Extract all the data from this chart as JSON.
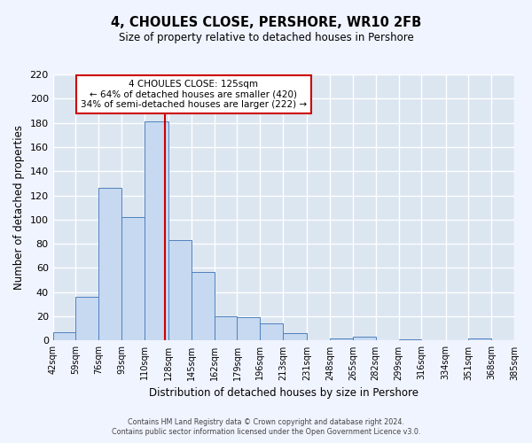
{
  "title": "4, CHOULES CLOSE, PERSHORE, WR10 2FB",
  "subtitle": "Size of property relative to detached houses in Pershore",
  "xlabel": "Distribution of detached houses by size in Pershore",
  "ylabel": "Number of detached properties",
  "bar_color": "#c6d9f1",
  "bar_edge_color": "#4f81bd",
  "bg_color": "#dce6f1",
  "grid_color": "#ffffff",
  "annotation_box_color": "#ffffff",
  "annotation_box_edge": "#cc0000",
  "fig_bg_color": "#f0f4ff",
  "redline_x": 125,
  "bin_edges": [
    42,
    59,
    76,
    93,
    110,
    128,
    145,
    162,
    179,
    196,
    213,
    231,
    248,
    265,
    282,
    299,
    316,
    334,
    351,
    368,
    385
  ],
  "bar_heights": [
    7,
    36,
    126,
    102,
    181,
    83,
    57,
    20,
    19,
    14,
    6,
    0,
    2,
    3,
    0,
    1,
    0,
    0,
    2,
    0
  ],
  "annotation_line1": "4 CHOULES CLOSE: 125sqm",
  "annotation_line2": "← 64% of detached houses are smaller (420)",
  "annotation_line3": "34% of semi-detached houses are larger (222) →",
  "ylim": [
    0,
    220
  ],
  "yticks": [
    0,
    20,
    40,
    60,
    80,
    100,
    120,
    140,
    160,
    180,
    200,
    220
  ],
  "xtick_labels": [
    "42sqm",
    "59sqm",
    "76sqm",
    "93sqm",
    "110sqm",
    "128sqm",
    "145sqm",
    "162sqm",
    "179sqm",
    "196sqm",
    "213sqm",
    "231sqm",
    "248sqm",
    "265sqm",
    "282sqm",
    "299sqm",
    "316sqm",
    "334sqm",
    "351sqm",
    "368sqm",
    "385sqm"
  ],
  "footer_line1": "Contains HM Land Registry data © Crown copyright and database right 2024.",
  "footer_line2": "Contains public sector information licensed under the Open Government Licence v3.0."
}
